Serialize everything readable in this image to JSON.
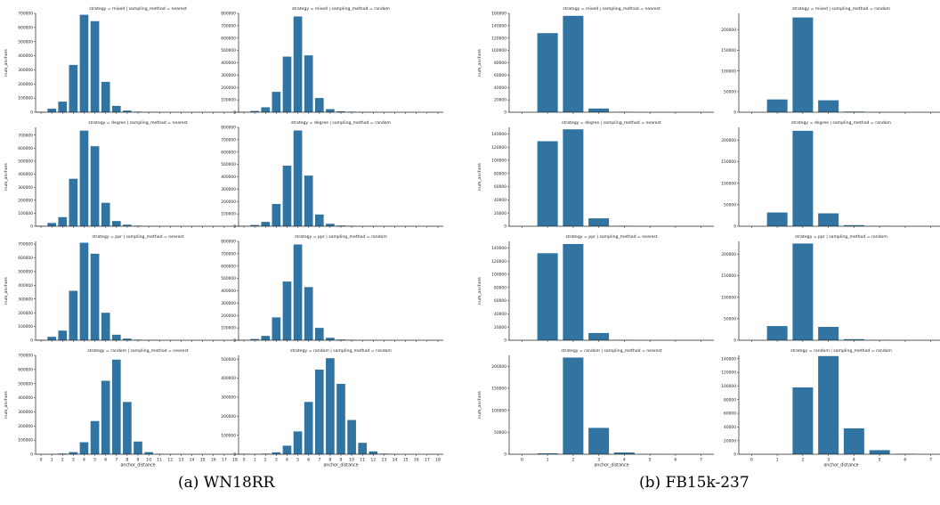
{
  "captions": {
    "a": "(a) WN18RR",
    "b": "(b) FB15k-237"
  },
  "chart_data": [
    {
      "group": "a",
      "type": "bar",
      "title": "strategy = mixed | sampling_method = nearest",
      "ylabel": "num_anchors",
      "xlabel": "",
      "color": "#3274a1",
      "categories": [
        "0",
        "1",
        "2",
        "3",
        "4",
        "5",
        "6",
        "7",
        "8",
        "9",
        "10",
        "11",
        "12",
        "13",
        "14",
        "15",
        "16",
        "17",
        "18"
      ],
      "values": [
        3000,
        25000,
        75000,
        335000,
        690000,
        645000,
        215000,
        45000,
        12000,
        4000,
        2000,
        1000,
        500,
        300,
        0,
        0,
        0,
        0,
        0
      ],
      "ylim": [
        0,
        700000
      ],
      "yticks": [
        0,
        100000,
        200000,
        300000,
        400000,
        500000,
        600000,
        700000
      ],
      "show_xticks": false
    },
    {
      "group": "a",
      "type": "bar",
      "title": "strategy = mixed | sampling_method = random",
      "ylabel": "",
      "xlabel": "",
      "color": "#3274a1",
      "categories": [
        "0",
        "1",
        "2",
        "3",
        "4",
        "5",
        "6",
        "7",
        "8",
        "9",
        "10",
        "11",
        "12",
        "13",
        "14",
        "15",
        "16",
        "17",
        "18"
      ],
      "values": [
        3000,
        10000,
        40000,
        165000,
        450000,
        775000,
        460000,
        115000,
        25000,
        8000,
        4000,
        2000,
        1000,
        500,
        0,
        0,
        0,
        0,
        0
      ],
      "ylim": [
        0,
        800000
      ],
      "yticks": [
        0,
        100000,
        200000,
        300000,
        400000,
        500000,
        600000,
        700000,
        800000
      ],
      "show_xticks": false
    },
    {
      "group": "b",
      "type": "bar",
      "title": "strategy = mixed | sampling_method = nearest",
      "ylabel": "num_anchors",
      "xlabel": "",
      "color": "#3274a1",
      "categories": [
        "0",
        "1",
        "2",
        "3",
        "4",
        "5",
        "6",
        "7"
      ],
      "values": [
        0,
        128000,
        156000,
        6000,
        500,
        0,
        0,
        0
      ],
      "ylim": [
        0,
        160000
      ],
      "yticks": [
        0,
        20000,
        40000,
        60000,
        80000,
        100000,
        120000,
        140000,
        160000
      ],
      "show_xticks": false
    },
    {
      "group": "b",
      "type": "bar",
      "title": "strategy = mixed | sampling_method = random",
      "ylabel": "",
      "xlabel": "",
      "color": "#3274a1",
      "categories": [
        "0",
        "1",
        "2",
        "3",
        "4",
        "5",
        "6",
        "7"
      ],
      "values": [
        0,
        31000,
        230000,
        29000,
        1500,
        300,
        0,
        0
      ],
      "ylim": [
        0,
        240000
      ],
      "yticks": [
        0,
        50000,
        100000,
        150000,
        200000
      ],
      "show_xticks": false
    },
    {
      "group": "a",
      "type": "bar",
      "title": "strategy = degree | sampling_method = nearest",
      "ylabel": "num_anchors",
      "xlabel": "",
      "color": "#3274a1",
      "categories": [
        "0",
        "1",
        "2",
        "3",
        "4",
        "5",
        "6",
        "7",
        "8",
        "9",
        "10",
        "11",
        "12",
        "13",
        "14",
        "15",
        "16",
        "17",
        "18"
      ],
      "values": [
        3000,
        25000,
        70000,
        365000,
        735000,
        615000,
        180000,
        40000,
        12000,
        4000,
        2000,
        1000,
        500,
        300,
        0,
        0,
        0,
        0,
        0
      ],
      "ylim": [
        0,
        760000
      ],
      "yticks": [
        0,
        100000,
        200000,
        300000,
        400000,
        500000,
        600000,
        700000
      ],
      "show_xticks": false
    },
    {
      "group": "a",
      "type": "bar",
      "title": "strategy = degree | sampling_method = random",
      "ylabel": "",
      "xlabel": "",
      "color": "#3274a1",
      "categories": [
        "0",
        "1",
        "2",
        "3",
        "4",
        "5",
        "6",
        "7",
        "8",
        "9",
        "10",
        "11",
        "12",
        "13",
        "14",
        "15",
        "16",
        "17",
        "18"
      ],
      "values": [
        3000,
        10000,
        35000,
        180000,
        490000,
        775000,
        410000,
        95000,
        20000,
        6000,
        3000,
        1500,
        800,
        400,
        0,
        0,
        0,
        0,
        0
      ],
      "ylim": [
        0,
        800000
      ],
      "yticks": [
        0,
        100000,
        200000,
        300000,
        400000,
        500000,
        600000,
        700000,
        800000
      ],
      "show_xticks": false
    },
    {
      "group": "b",
      "type": "bar",
      "title": "strategy = degree | sampling_method = nearest",
      "ylabel": "num_anchors",
      "xlabel": "",
      "color": "#3274a1",
      "categories": [
        "0",
        "1",
        "2",
        "3",
        "4",
        "5",
        "6",
        "7"
      ],
      "values": [
        0,
        129000,
        147000,
        12000,
        500,
        0,
        0,
        0
      ],
      "ylim": [
        0,
        150000
      ],
      "yticks": [
        0,
        20000,
        40000,
        60000,
        80000,
        100000,
        120000,
        140000
      ],
      "show_xticks": false
    },
    {
      "group": "b",
      "type": "bar",
      "title": "strategy = degree | sampling_method = random",
      "ylabel": "",
      "xlabel": "",
      "color": "#3274a1",
      "categories": [
        "0",
        "1",
        "2",
        "3",
        "4",
        "5",
        "6",
        "7"
      ],
      "values": [
        0,
        32000,
        222000,
        30000,
        2500,
        500,
        0,
        0
      ],
      "ylim": [
        0,
        230000
      ],
      "yticks": [
        0,
        50000,
        100000,
        150000,
        200000
      ],
      "show_xticks": false
    },
    {
      "group": "a",
      "type": "bar",
      "title": "strategy = ppr | sampling_method = nearest",
      "ylabel": "num_anchors",
      "xlabel": "",
      "color": "#3274a1",
      "categories": [
        "0",
        "1",
        "2",
        "3",
        "4",
        "5",
        "6",
        "7",
        "8",
        "9",
        "10",
        "11",
        "12",
        "13",
        "14",
        "15",
        "16",
        "17",
        "18"
      ],
      "values": [
        3000,
        25000,
        70000,
        360000,
        710000,
        630000,
        200000,
        40000,
        12000,
        4000,
        2000,
        1000,
        500,
        300,
        0,
        0,
        0,
        0,
        0
      ],
      "ylim": [
        0,
        720000
      ],
      "yticks": [
        0,
        100000,
        200000,
        300000,
        400000,
        500000,
        600000,
        700000
      ],
      "show_xticks": false
    },
    {
      "group": "a",
      "type": "bar",
      "title": "strategy = ppr | sampling_method = random",
      "ylabel": "",
      "xlabel": "",
      "color": "#3274a1",
      "categories": [
        "0",
        "1",
        "2",
        "3",
        "4",
        "5",
        "6",
        "7",
        "8",
        "9",
        "10",
        "11",
        "12",
        "13",
        "14",
        "15",
        "16",
        "17",
        "18"
      ],
      "values": [
        3000,
        10000,
        35000,
        185000,
        475000,
        775000,
        430000,
        100000,
        20000,
        6000,
        3000,
        1500,
        800,
        400,
        0,
        0,
        0,
        0,
        0
      ],
      "ylim": [
        0,
        800000
      ],
      "yticks": [
        0,
        100000,
        200000,
        300000,
        400000,
        500000,
        600000,
        700000,
        800000
      ],
      "show_xticks": false
    },
    {
      "group": "b",
      "type": "bar",
      "title": "strategy = ppr | sampling_method = nearest",
      "ylabel": "num_anchors",
      "xlabel": "",
      "color": "#3274a1",
      "categories": [
        "0",
        "1",
        "2",
        "3",
        "4",
        "5",
        "6",
        "7"
      ],
      "values": [
        0,
        132000,
        146000,
        11000,
        300,
        0,
        0,
        0
      ],
      "ylim": [
        0,
        150000
      ],
      "yticks": [
        0,
        20000,
        40000,
        60000,
        80000,
        100000,
        120000,
        140000
      ],
      "show_xticks": false
    },
    {
      "group": "b",
      "type": "bar",
      "title": "strategy = ppr | sampling_method = random",
      "ylabel": "",
      "xlabel": "",
      "color": "#3274a1",
      "categories": [
        "0",
        "1",
        "2",
        "3",
        "4",
        "5",
        "6",
        "7"
      ],
      "values": [
        0,
        33000,
        225000,
        31000,
        2500,
        500,
        0,
        0
      ],
      "ylim": [
        0,
        230000
      ],
      "yticks": [
        0,
        50000,
        100000,
        150000,
        200000
      ],
      "show_xticks": false
    },
    {
      "group": "a",
      "type": "bar",
      "title": "strategy = random | sampling_method = nearest",
      "ylabel": "num_anchors",
      "xlabel": "anchor_distance",
      "color": "#3274a1",
      "categories": [
        "0",
        "1",
        "2",
        "3",
        "4",
        "5",
        "6",
        "7",
        "8",
        "9",
        "10",
        "11",
        "12",
        "13",
        "14",
        "15",
        "16",
        "17",
        "18"
      ],
      "values": [
        0,
        1000,
        5000,
        15000,
        85000,
        235000,
        520000,
        670000,
        370000,
        90000,
        15000,
        3000,
        1000,
        500,
        200,
        0,
        0,
        0,
        0
      ],
      "ylim": [
        0,
        700000
      ],
      "yticks": [
        0,
        100000,
        200000,
        300000,
        400000,
        500000,
        600000,
        700000
      ],
      "show_xticks": true
    },
    {
      "group": "a",
      "type": "bar",
      "title": "strategy = random | sampling_method = random",
      "ylabel": "",
      "xlabel": "anchor_distance",
      "color": "#3274a1",
      "categories": [
        "0",
        "1",
        "2",
        "3",
        "4",
        "5",
        "6",
        "7",
        "8",
        "9",
        "10",
        "11",
        "12",
        "13",
        "14",
        "15",
        "16",
        "17",
        "18"
      ],
      "values": [
        2000,
        1000,
        3000,
        10000,
        45000,
        120000,
        275000,
        445000,
        505000,
        370000,
        180000,
        60000,
        15000,
        3000,
        1000,
        500,
        0,
        0,
        0
      ],
      "ylim": [
        0,
        520000
      ],
      "yticks": [
        0,
        100000,
        200000,
        300000,
        400000,
        500000
      ],
      "show_xticks": true
    },
    {
      "group": "b",
      "type": "bar",
      "title": "strategy = random | sampling_method = nearest",
      "ylabel": "num_anchors",
      "xlabel": "anchor_distance",
      "color": "#3274a1",
      "categories": [
        "0",
        "1",
        "2",
        "3",
        "4",
        "5",
        "6",
        "7"
      ],
      "values": [
        0,
        2000,
        220000,
        60000,
        4000,
        300,
        0,
        0
      ],
      "ylim": [
        0,
        225000
      ],
      "yticks": [
        0,
        50000,
        100000,
        150000,
        200000
      ],
      "show_xticks": true
    },
    {
      "group": "b",
      "type": "bar",
      "title": "strategy = random | sampling_method = random",
      "ylabel": "",
      "xlabel": "anchor_distance",
      "color": "#3274a1",
      "categories": [
        "0",
        "1",
        "2",
        "3",
        "4",
        "5",
        "6",
        "7"
      ],
      "values": [
        0,
        0,
        98000,
        144000,
        38000,
        6000,
        500,
        0
      ],
      "ylim": [
        0,
        145000
      ],
      "yticks": [
        0,
        20000,
        40000,
        60000,
        80000,
        100000,
        120000,
        140000
      ],
      "show_xticks": true
    }
  ]
}
